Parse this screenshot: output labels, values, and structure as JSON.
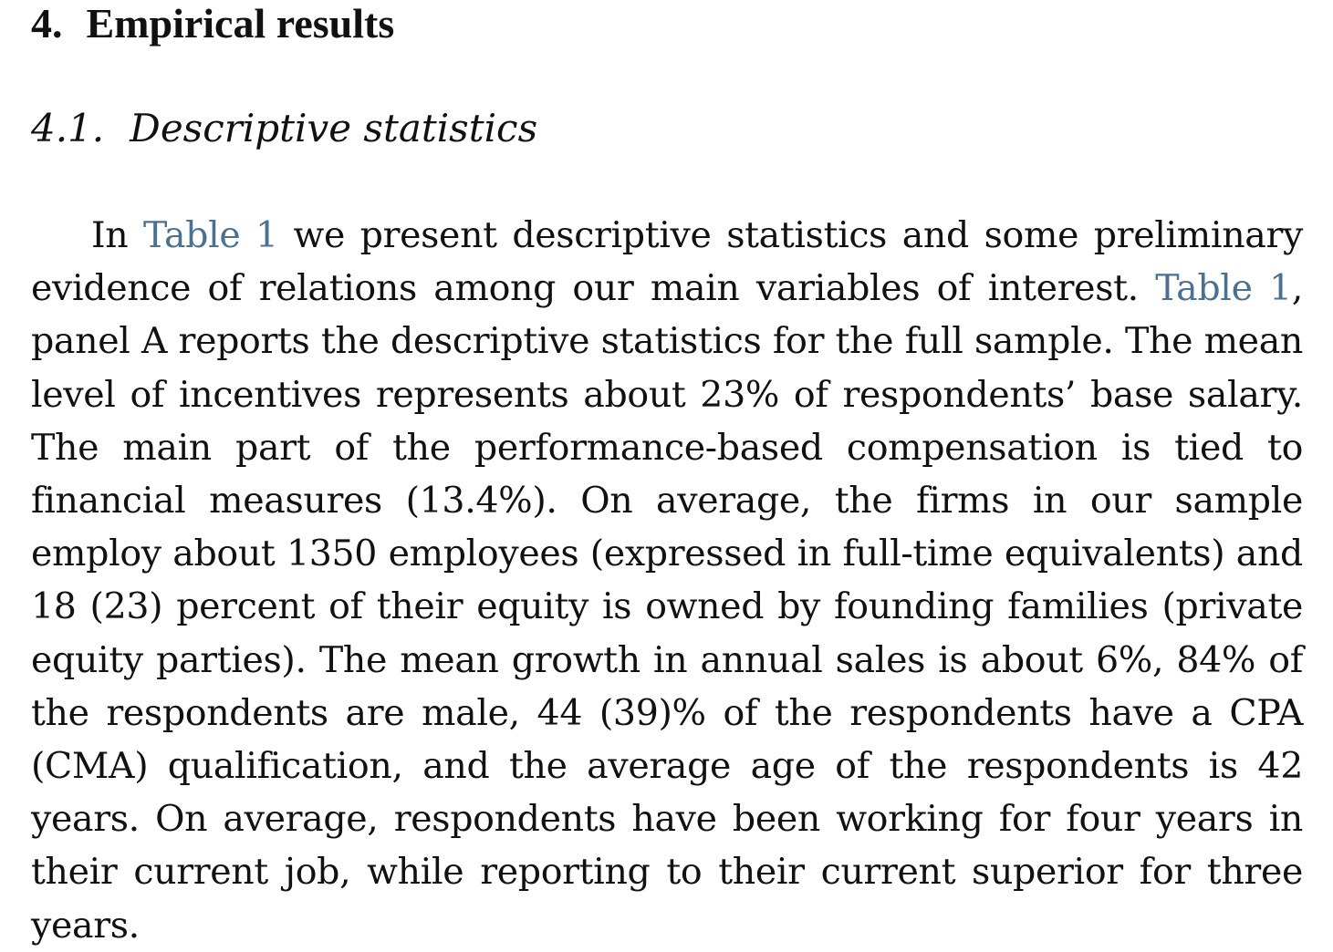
{
  "section": {
    "number": "4.",
    "title": "Empirical results"
  },
  "subsection": {
    "number": "4.1.",
    "title": "Descriptive statistics"
  },
  "paragraph": {
    "seg1": "In ",
    "link1": "Table 1",
    "seg2": " we present descriptive statistics and some pre­liminary evidence of relations among our main variables of interest. ",
    "link2": "Table 1",
    "seg3": ", panel A reports the descriptive statistics for the full sample. The mean level of incentives represents about 23% of respondents’ base salary. The main part of the performance-based compensation is tied to financial measures (13.4%). On average, the firms in our sample employ about 1350 employees (expressed in full-time equivalents) and 18 (23) percent of their equity is owned by founding families (private equity parties). The mean growth in annual sales is about 6%, 84% of the respondents are male, 44 (39)% of the respondents have a CPA (CMA) qualification, and the average age of the respondents is 42 years. On average, respondents have been working for four years in their current job, while reporting to their current superior for three years."
  },
  "colors": {
    "text": "#111111",
    "link": "#4a7191",
    "background": "#ffffff"
  }
}
